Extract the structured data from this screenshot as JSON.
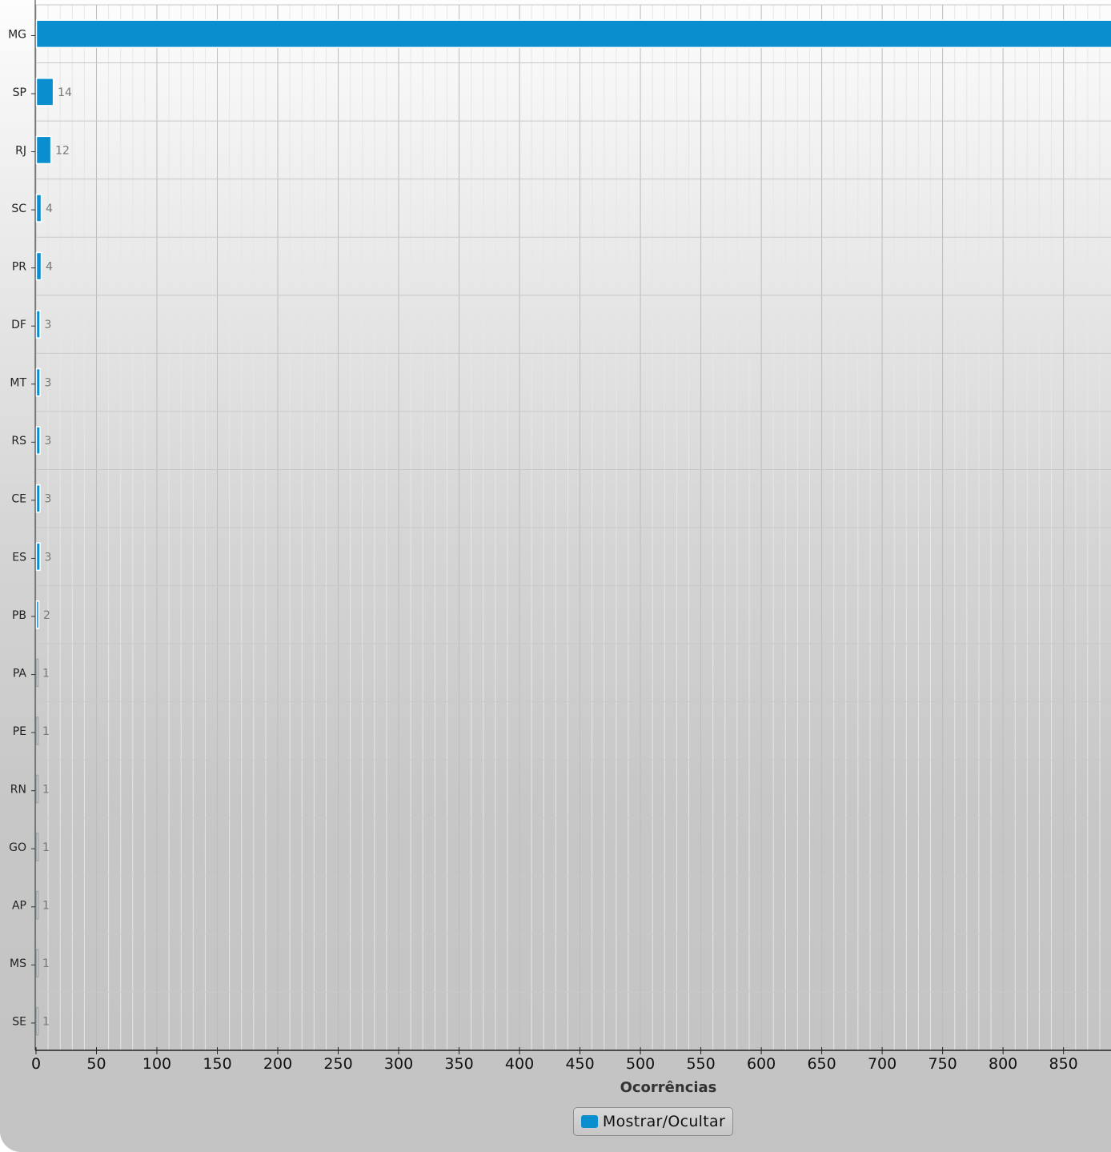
{
  "chart_data": {
    "type": "bar",
    "orientation": "horizontal",
    "categories": [
      "MG",
      "SP",
      "RJ",
      "SC",
      "PR",
      "DF",
      "MT",
      "RS",
      "CE",
      "ES",
      "PB",
      "PA",
      "PE",
      "RN",
      "GO",
      "AP",
      "MS",
      "SE"
    ],
    "values": [
      890,
      14,
      12,
      4,
      4,
      3,
      3,
      3,
      3,
      3,
      2,
      1,
      1,
      1,
      1,
      1,
      1,
      1
    ],
    "data_labels": [
      "",
      "14",
      "12",
      "4",
      "4",
      "3",
      "3",
      "3",
      "3",
      "3",
      "2",
      "1",
      "1",
      "1",
      "1",
      "1",
      "1",
      "1"
    ],
    "x_ticks": [
      "0",
      "50",
      "100",
      "150",
      "200",
      "250",
      "300",
      "350",
      "400",
      "450",
      "500",
      "550",
      "600",
      "650",
      "700",
      "750",
      "800",
      "850"
    ],
    "xlabel": "Ocorrências",
    "ylabel": "",
    "xlim": [
      0,
      886
    ],
    "grid": true,
    "bar_color": "#0b8ecd",
    "legend": {
      "label": "Mostrar/Ocultar",
      "placement": "bottom-center"
    }
  }
}
